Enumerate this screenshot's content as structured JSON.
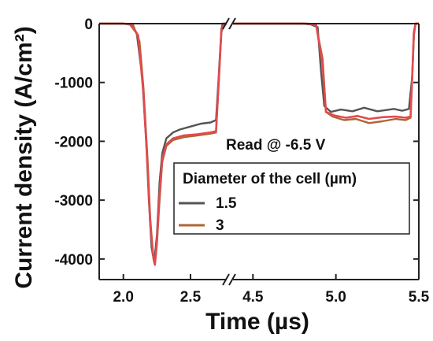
{
  "chart_data": {
    "type": "line",
    "title": "",
    "xlabel": "Time (µs)",
    "ylabel": "Current density (A/cm²)",
    "ylim": [
      -4350,
      0
    ],
    "x_axis_break": true,
    "x_segments": [
      {
        "xlim": [
          1.82,
          2.77
        ],
        "ticks": [
          "2.0",
          "2.5"
        ],
        "tick_values": [
          2.0,
          2.5
        ]
      },
      {
        "xlim": [
          4.38,
          5.5
        ],
        "ticks": [
          "4.5",
          "5.0",
          "5.5"
        ],
        "tick_values": [
          4.5,
          5.0,
          5.5
        ]
      }
    ],
    "y_ticks": [
      0,
      -1000,
      -2000,
      -3000,
      -4000
    ],
    "y_tick_labels": [
      "0",
      "-1000",
      "-2000",
      "-3000",
      "-4000"
    ],
    "annotation": "Read @ -6.5 V",
    "legend": {
      "title": "Diameter of the cell (µm)",
      "placement": "center-right"
    },
    "series": [
      {
        "name": "1.5",
        "color": "#555555",
        "segments": [
          [
            [
              1.82,
              0
            ],
            [
              2.0,
              0
            ],
            [
              2.06,
              -20
            ],
            [
              2.1,
              -160
            ],
            [
              2.14,
              -900
            ],
            [
              2.17,
              -2000
            ],
            [
              2.19,
              -3000
            ],
            [
              2.21,
              -3800
            ],
            [
              2.23,
              -4060
            ],
            [
              2.25,
              -3600
            ],
            [
              2.27,
              -2700
            ],
            [
              2.29,
              -2200
            ],
            [
              2.32,
              -1950
            ],
            [
              2.37,
              -1850
            ],
            [
              2.42,
              -1800
            ],
            [
              2.5,
              -1750
            ],
            [
              2.58,
              -1700
            ],
            [
              2.65,
              -1680
            ],
            [
              2.69,
              -1640
            ],
            [
              2.71,
              -900
            ],
            [
              2.73,
              -100
            ],
            [
              2.74,
              0
            ],
            [
              2.77,
              0
            ]
          ],
          [
            [
              4.38,
              0
            ],
            [
              4.8,
              0
            ],
            [
              4.85,
              -15
            ],
            [
              4.89,
              -60
            ],
            [
              4.91,
              -800
            ],
            [
              4.93,
              -1400
            ],
            [
              4.97,
              -1500
            ],
            [
              5.03,
              -1460
            ],
            [
              5.1,
              -1490
            ],
            [
              5.17,
              -1430
            ],
            [
              5.25,
              -1490
            ],
            [
              5.35,
              -1450
            ],
            [
              5.4,
              -1480
            ],
            [
              5.44,
              -1450
            ],
            [
              5.46,
              -900
            ],
            [
              5.47,
              -200
            ],
            [
              5.48,
              0
            ],
            [
              5.5,
              0
            ]
          ]
        ]
      },
      {
        "name": "3",
        "color": "#b06535",
        "segments": [
          [
            [
              1.82,
              0
            ],
            [
              2.0,
              0
            ],
            [
              2.07,
              -10
            ],
            [
              2.12,
              -300
            ],
            [
              2.15,
              -1100
            ],
            [
              2.18,
              -2300
            ],
            [
              2.2,
              -3300
            ],
            [
              2.22,
              -3900
            ],
            [
              2.235,
              -4080
            ],
            [
              2.25,
              -3750
            ],
            [
              2.27,
              -3000
            ],
            [
              2.29,
              -2350
            ],
            [
              2.32,
              -2080
            ],
            [
              2.37,
              -1980
            ],
            [
              2.45,
              -1930
            ],
            [
              2.55,
              -1900
            ],
            [
              2.65,
              -1870
            ],
            [
              2.69,
              -1850
            ],
            [
              2.71,
              -1000
            ],
            [
              2.73,
              -150
            ],
            [
              2.75,
              0
            ],
            [
              2.77,
              0
            ]
          ],
          [
            [
              4.38,
              0
            ],
            [
              4.82,
              0
            ],
            [
              4.88,
              -20
            ],
            [
              4.92,
              -600
            ],
            [
              4.94,
              -1500
            ],
            [
              4.98,
              -1580
            ],
            [
              5.05,
              -1640
            ],
            [
              5.12,
              -1620
            ],
            [
              5.2,
              -1690
            ],
            [
              5.28,
              -1660
            ],
            [
              5.36,
              -1620
            ],
            [
              5.42,
              -1640
            ],
            [
              5.45,
              -1600
            ],
            [
              5.46,
              -900
            ],
            [
              5.47,
              -150
            ],
            [
              5.48,
              0
            ],
            [
              5.5,
              0
            ]
          ]
        ]
      },
      {
        "name": "",
        "color": "#e24a4f",
        "segments": [
          [
            [
              1.82,
              0
            ],
            [
              2.0,
              0
            ],
            [
              2.05,
              -15
            ],
            [
              2.11,
              -200
            ],
            [
              2.15,
              -1200
            ],
            [
              2.18,
              -2400
            ],
            [
              2.2,
              -3400
            ],
            [
              2.225,
              -4000
            ],
            [
              2.235,
              -4100
            ],
            [
              2.25,
              -3700
            ],
            [
              2.27,
              -2900
            ],
            [
              2.29,
              -2300
            ],
            [
              2.32,
              -2050
            ],
            [
              2.37,
              -1950
            ],
            [
              2.45,
              -1900
            ],
            [
              2.55,
              -1880
            ],
            [
              2.65,
              -1850
            ],
            [
              2.69,
              -1830
            ],
            [
              2.71,
              -1000
            ],
            [
              2.73,
              -120
            ],
            [
              2.75,
              0
            ],
            [
              2.77,
              0
            ]
          ],
          [
            [
              4.38,
              0
            ],
            [
              4.82,
              0
            ],
            [
              4.88,
              -10
            ],
            [
              4.92,
              -700
            ],
            [
              4.94,
              -1500
            ],
            [
              4.99,
              -1560
            ],
            [
              5.06,
              -1600
            ],
            [
              5.13,
              -1570
            ],
            [
              5.2,
              -1620
            ],
            [
              5.28,
              -1590
            ],
            [
              5.36,
              -1580
            ],
            [
              5.42,
              -1600
            ],
            [
              5.45,
              -1580
            ],
            [
              5.46,
              -900
            ],
            [
              5.47,
              -150
            ],
            [
              5.48,
              0
            ],
            [
              5.5,
              0
            ]
          ]
        ]
      }
    ]
  }
}
